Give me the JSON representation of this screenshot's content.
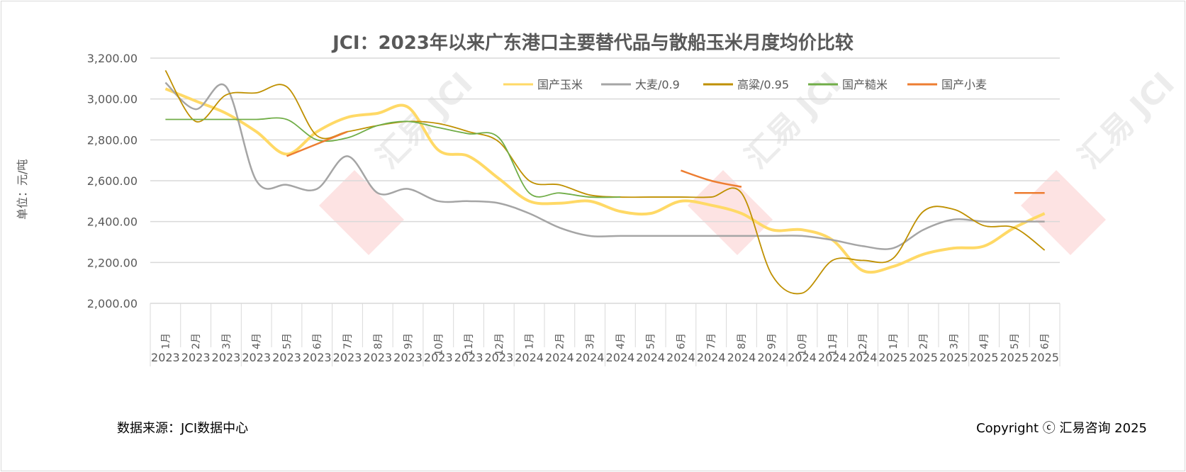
{
  "chart_data": {
    "type": "line",
    "title": "JCI：2023年以来广东港口主要替代品与散船玉米月度均价比较",
    "ylabel": "单位：元/吨",
    "xlabel": "",
    "ylim": [
      2000,
      3200
    ],
    "yticks": [
      "2,000.00",
      "2,200.00",
      "2,400.00",
      "2,600.00",
      "2,800.00",
      "3,000.00",
      "3,200.00"
    ],
    "ytick_values": [
      2000,
      2200,
      2400,
      2600,
      2800,
      3000,
      3200
    ],
    "grid": true,
    "legend_position": "top-right",
    "months": [
      "1月",
      "2月",
      "3月",
      "4月",
      "5月",
      "6月",
      "7月",
      "8月",
      "9月",
      "10月",
      "11月",
      "12月",
      "1月",
      "2月",
      "3月",
      "4月",
      "5月",
      "6月",
      "7月",
      "8月",
      "9月",
      "10月",
      "11月",
      "12月",
      "1月",
      "2月",
      "3月",
      "4月",
      "5月",
      "6月"
    ],
    "years": [
      "2023",
      "2023",
      "2023",
      "2023",
      "2023",
      "2023",
      "2023",
      "2023",
      "2023",
      "2023",
      "2023",
      "2023",
      "2024",
      "2024",
      "2024",
      "2024",
      "2024",
      "2024",
      "2024",
      "2024",
      "2024",
      "2024",
      "2024",
      "2024",
      "2025",
      "2025",
      "2025",
      "2025",
      "2025",
      "2025"
    ],
    "series": [
      {
        "name": "国产玉米",
        "color": "#ffd966",
        "width": 4,
        "values": [
          3050,
          2990,
          2930,
          2840,
          2730,
          2840,
          2910,
          2930,
          2960,
          2750,
          2720,
          2610,
          2500,
          2490,
          2500,
          2450,
          2440,
          2500,
          2480,
          2440,
          2360,
          2360,
          2310,
          2160,
          2180,
          2240,
          2270,
          2280,
          2370,
          2440
        ]
      },
      {
        "name": "大麦/0.9",
        "color": "#a5a5a5",
        "width": 2.5,
        "values": [
          3080,
          2950,
          3060,
          2600,
          2580,
          2560,
          2720,
          2540,
          2560,
          2500,
          2500,
          2490,
          2440,
          2370,
          2330,
          2330,
          2330,
          2330,
          2330,
          2330,
          2330,
          2330,
          2310,
          2280,
          2270,
          2360,
          2410,
          2400,
          2400,
          2400
        ]
      },
      {
        "name": "高粱/0.95",
        "color": "#bf9000",
        "width": 1.8,
        "values": [
          3140,
          2890,
          3020,
          3030,
          3060,
          2820,
          2840,
          2870,
          2890,
          2880,
          2840,
          2790,
          2600,
          2580,
          2530,
          2520,
          2520,
          2520,
          2520,
          2540,
          2140,
          2050,
          2210,
          2210,
          2220,
          2450,
          2460,
          2380,
          2370,
          2260
        ]
      },
      {
        "name": "国产糙米",
        "color": "#70ad47",
        "width": 1.8,
        "values": [
          2900,
          2900,
          2900,
          2900,
          2900,
          2800,
          2810,
          2870,
          2890,
          2860,
          2830,
          2810,
          2540,
          2540,
          2520,
          2520,
          null,
          null,
          null,
          null,
          null,
          null,
          null,
          null,
          null,
          null,
          null,
          null,
          null,
          null
        ]
      },
      {
        "name": "国产小麦",
        "color": "#ed7d31",
        "width": 2.5,
        "values": [
          null,
          null,
          null,
          null,
          2720,
          2780,
          2840,
          null,
          null,
          null,
          null,
          null,
          null,
          null,
          null,
          null,
          null,
          2650,
          2600,
          2570,
          null,
          null,
          null,
          null,
          null,
          null,
          null,
          null,
          2540,
          2540
        ]
      }
    ]
  },
  "footer": {
    "source": "数据来源：JCI数据中心",
    "copyright": "Copyright ⓒ 汇易咨询 2025"
  },
  "watermark": "汇易 JCI"
}
